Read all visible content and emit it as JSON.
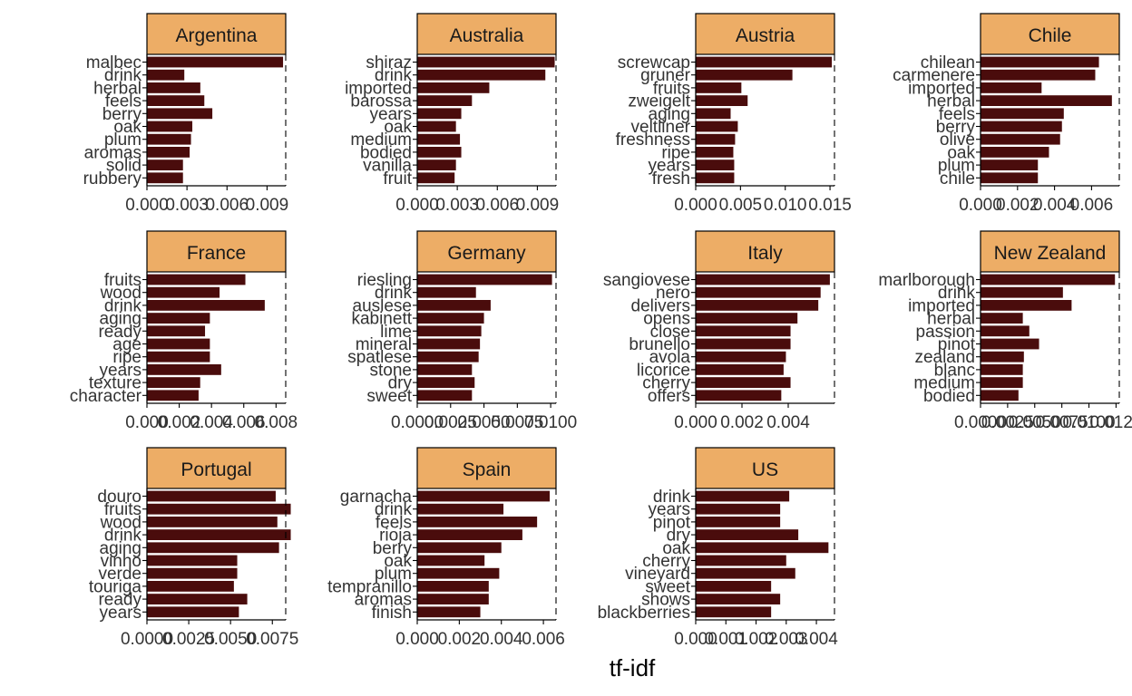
{
  "xlabel": "tf-idf",
  "colors": {
    "bar": "#4A0C0C",
    "strip": "#EDAD66",
    "frame": "#000000",
    "text": "#333333"
  },
  "chart_data": [
    {
      "type": "bar",
      "orientation": "horizontal",
      "title": "Argentina",
      "xlim": [
        0,
        0.0104
      ],
      "xticks": [
        0,
        0.003,
        0.006,
        0.009
      ],
      "xtick_labels": [
        "0.000",
        "0.003",
        "0.006",
        "0.009"
      ],
      "categories": [
        "malbec",
        "drink",
        "herbal",
        "feels",
        "berry",
        "oak",
        "plum",
        "aromas",
        "solid",
        "rubbery"
      ],
      "values": [
        0.0102,
        0.0028,
        0.004,
        0.0043,
        0.0049,
        0.0034,
        0.0033,
        0.0032,
        0.0027,
        0.0027
      ]
    },
    {
      "type": "bar",
      "orientation": "horizontal",
      "title": "Australia",
      "xlim": [
        0,
        0.0104
      ],
      "xticks": [
        0,
        0.003,
        0.006,
        0.009
      ],
      "xtick_labels": [
        "0.000",
        "0.003",
        "0.006",
        "0.009"
      ],
      "categories": [
        "shiraz",
        "drink",
        "imported",
        "barossa",
        "years",
        "oak",
        "medium",
        "bodied",
        "vanilla",
        "fruit"
      ],
      "values": [
        0.0103,
        0.0096,
        0.0054,
        0.0041,
        0.0033,
        0.0029,
        0.0032,
        0.0033,
        0.0029,
        0.0028
      ]
    },
    {
      "type": "bar",
      "orientation": "horizontal",
      "title": "Austria",
      "xlim": [
        0,
        0.0155
      ],
      "xticks": [
        0,
        0.005,
        0.01,
        0.015
      ],
      "xtick_labels": [
        "0.000",
        "0.005",
        "0.010",
        "0.015"
      ],
      "categories": [
        "screwcap",
        "gruner",
        "fruits",
        "zweigelt",
        "aging",
        "veltliner",
        "freshness",
        "ripe",
        "years",
        "fresh"
      ],
      "values": [
        0.0152,
        0.0108,
        0.0051,
        0.0058,
        0.0039,
        0.0047,
        0.0044,
        0.0042,
        0.0043,
        0.0043
      ]
    },
    {
      "type": "bar",
      "orientation": "horizontal",
      "title": "Chile",
      "xlim": [
        0,
        0.0075
      ],
      "xticks": [
        0,
        0.002,
        0.004,
        0.006
      ],
      "xtick_labels": [
        "0.000",
        "0.002",
        "0.004",
        "0.006"
      ],
      "categories": [
        "chilean",
        "carmenere",
        "imported",
        "herbal",
        "feels",
        "berry",
        "olive",
        "oak",
        "plum",
        "chile"
      ],
      "values": [
        0.0064,
        0.0062,
        0.0033,
        0.0071,
        0.0045,
        0.0044,
        0.0043,
        0.0037,
        0.0031,
        0.0031
      ]
    },
    {
      "type": "bar",
      "orientation": "horizontal",
      "title": "France",
      "xlim": [
        0,
        0.0086
      ],
      "xticks": [
        0,
        0.002,
        0.004,
        0.006,
        0.008
      ],
      "xtick_labels": [
        "0.000",
        "0.002",
        "0.004",
        "0.006",
        "0.008"
      ],
      "categories": [
        "fruits",
        "wood",
        "drink",
        "aging",
        "ready",
        "age",
        "ripe",
        "years",
        "texture",
        "character"
      ],
      "values": [
        0.0061,
        0.0045,
        0.0073,
        0.0039,
        0.0036,
        0.0039,
        0.0039,
        0.0046,
        0.0033,
        0.0032
      ]
    },
    {
      "type": "bar",
      "orientation": "horizontal",
      "title": "Germany",
      "xlim": [
        0,
        0.0104
      ],
      "xticks": [
        0,
        0.0025,
        0.005,
        0.0075,
        0.01
      ],
      "xtick_labels": [
        "0.0000",
        "0.0025",
        "0.0050",
        "0.0075",
        "0.0100"
      ],
      "categories": [
        "riesling",
        "drink",
        "auslese",
        "kabinett",
        "lime",
        "mineral",
        "spatlese",
        "stone",
        "dry",
        "sweet"
      ],
      "values": [
        0.0101,
        0.0044,
        0.0055,
        0.005,
        0.0048,
        0.0047,
        0.0046,
        0.0041,
        0.0043,
        0.0041
      ]
    },
    {
      "type": "bar",
      "orientation": "horizontal",
      "title": "Italy",
      "xlim": [
        0,
        0.006
      ],
      "xticks": [
        0,
        0.002,
        0.004
      ],
      "xtick_labels": [
        "0.000",
        "0.002",
        "0.004"
      ],
      "categories": [
        "sangiovese",
        "nero",
        "delivers",
        "opens",
        "close",
        "brunello",
        "avola",
        "licorice",
        "cherry",
        "offers"
      ],
      "values": [
        0.0058,
        0.0054,
        0.0053,
        0.0044,
        0.0041,
        0.0041,
        0.0039,
        0.0038,
        0.0041,
        0.0037
      ]
    },
    {
      "type": "bar",
      "orientation": "horizontal",
      "title": "New Zealand",
      "xlim": [
        0,
        0.0128
      ],
      "xticks": [
        0,
        0.0025,
        0.005,
        0.0075,
        0.01,
        0.0125
      ],
      "xtick_labels": [
        "0.0000",
        "0.0025",
        "0.0050",
        "0.0075",
        "0.0100",
        "0.0125"
      ],
      "categories": [
        "marlborough",
        "drink",
        "imported",
        "herbal",
        "passion",
        "pinot",
        "zealand",
        "blanc",
        "medium",
        "bodied"
      ],
      "values": [
        0.0124,
        0.0076,
        0.0084,
        0.0039,
        0.0045,
        0.0054,
        0.004,
        0.0039,
        0.0039,
        0.0035
      ]
    },
    {
      "type": "bar",
      "orientation": "horizontal",
      "title": "Portugal",
      "xlim": [
        0,
        0.0083
      ],
      "xticks": [
        0,
        0.0025,
        0.005,
        0.0075
      ],
      "xtick_labels": [
        "0.0000",
        "0.0025",
        "0.0050",
        "0.0075"
      ],
      "categories": [
        "douro",
        "fruits",
        "wood",
        "drink",
        "aging",
        "vinho",
        "verde",
        "touriga",
        "ready",
        "years"
      ],
      "values": [
        0.0077,
        0.0086,
        0.0078,
        0.0086,
        0.0079,
        0.0054,
        0.0054,
        0.0052,
        0.006,
        0.0055
      ]
    },
    {
      "type": "bar",
      "orientation": "horizontal",
      "title": "Spain",
      "xlim": [
        0,
        0.0066
      ],
      "xticks": [
        0,
        0.002,
        0.004,
        0.006
      ],
      "xtick_labels": [
        "0.000",
        "0.002",
        "0.004",
        "0.006"
      ],
      "categories": [
        "garnacha",
        "drink",
        "feels",
        "rioja",
        "berry",
        "oak",
        "plum",
        "tempranillo",
        "aromas",
        "finish"
      ],
      "values": [
        0.0063,
        0.0041,
        0.0057,
        0.005,
        0.004,
        0.0032,
        0.0039,
        0.0034,
        0.0034,
        0.003
      ]
    },
    {
      "type": "bar",
      "orientation": "horizontal",
      "title": "US",
      "xlim": [
        0,
        0.0046
      ],
      "xticks": [
        0,
        0.001,
        0.002,
        0.003,
        0.004
      ],
      "xtick_labels": [
        "0.000",
        "0.001",
        "0.002",
        "0.003",
        "0.004"
      ],
      "categories": [
        "drink",
        "years",
        "pinot",
        "dry",
        "oak",
        "cherry",
        "vineyard",
        "sweet",
        "shows",
        "blackberries"
      ],
      "values": [
        0.0031,
        0.0028,
        0.0028,
        0.0034,
        0.0044,
        0.003,
        0.0033,
        0.0025,
        0.0028,
        0.0025
      ]
    }
  ]
}
